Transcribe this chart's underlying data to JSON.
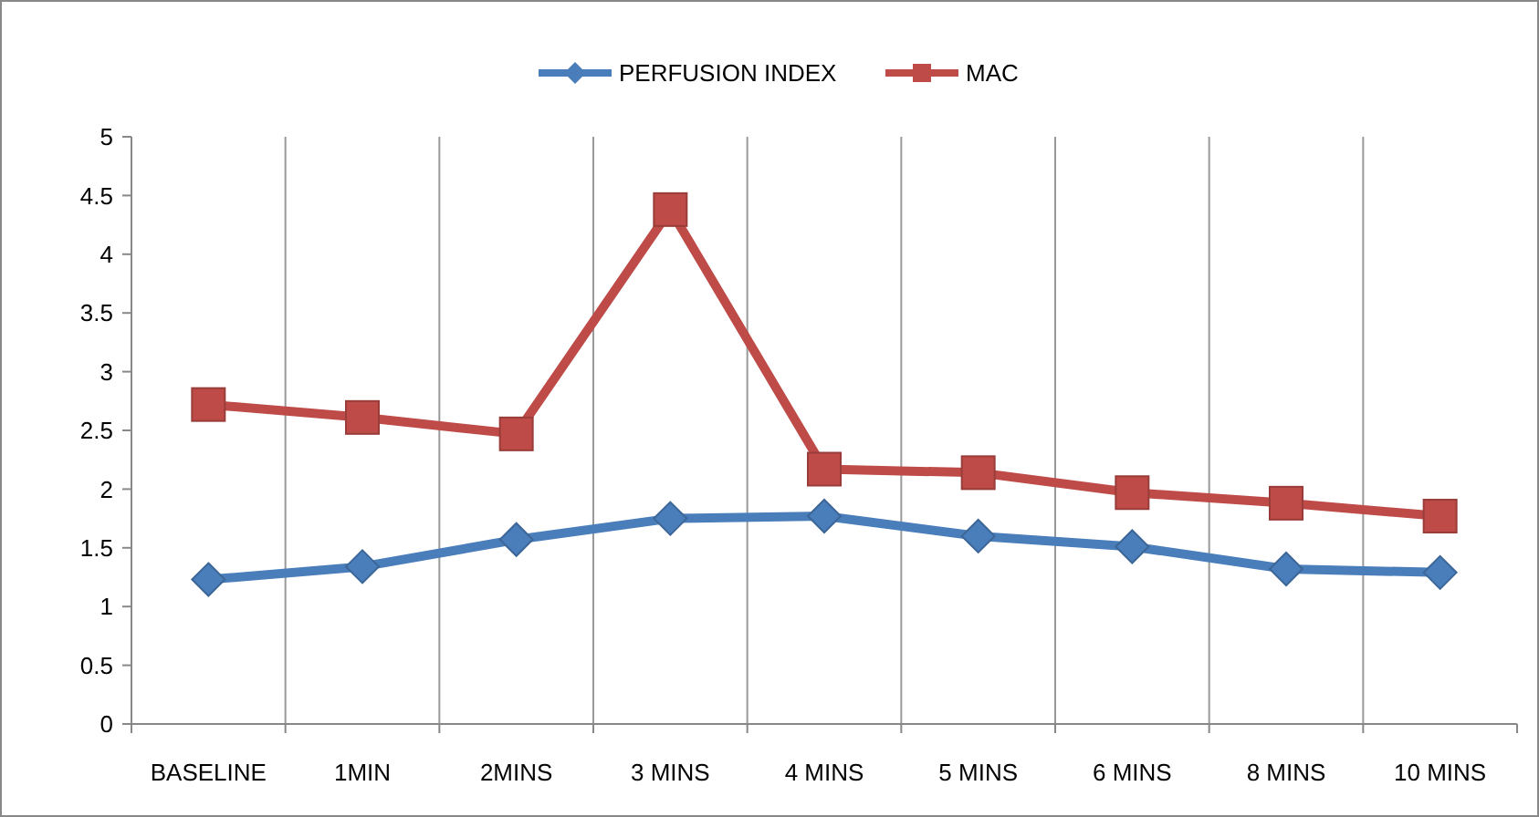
{
  "chart_data": {
    "type": "line",
    "categories": [
      "BASELINE",
      "1MIN",
      "2MINS",
      "3 MINS",
      "4 MINS",
      "5 MINS",
      "6 MINS",
      "8 MINS",
      "10 MINS"
    ],
    "series": [
      {
        "name": "PERFUSION INDEX",
        "color": "#4a7ebb",
        "marker": "diamond",
        "values": [
          1.23,
          1.34,
          1.57,
          1.75,
          1.77,
          1.6,
          1.51,
          1.32,
          1.29
        ]
      },
      {
        "name": "MAC",
        "color": "#be4b48",
        "marker": "square",
        "values": [
          2.72,
          2.61,
          2.47,
          4.38,
          2.17,
          2.14,
          1.97,
          1.88,
          1.77
        ]
      }
    ],
    "ylim": [
      0,
      5
    ],
    "yticks": [
      0,
      0.5,
      1,
      1.5,
      2,
      2.5,
      3,
      3.5,
      4,
      4.5,
      5
    ],
    "grid": "x",
    "legend": "top"
  }
}
